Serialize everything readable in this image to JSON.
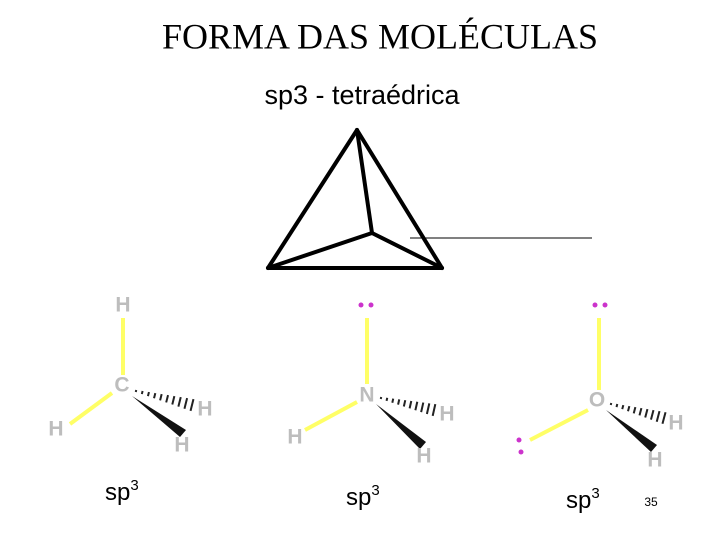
{
  "header": {
    "title": "FORMA DAS MOLÉCULAS",
    "subtitle": "sp3 - tetraédrica"
  },
  "molecules": [
    {
      "atoms": [
        "H",
        "C",
        "H",
        "H",
        "H"
      ],
      "hybrid": {
        "base": "sp",
        "sup": "3"
      }
    },
    {
      "atoms": [
        "N",
        "H",
        "H",
        "H"
      ],
      "hybrid": {
        "base": "sp",
        "sup": "3"
      }
    },
    {
      "atoms": [
        "O",
        "H",
        "H"
      ],
      "hybrid": {
        "base": "sp",
        "sup": "3"
      }
    }
  ],
  "page_number": "35"
}
